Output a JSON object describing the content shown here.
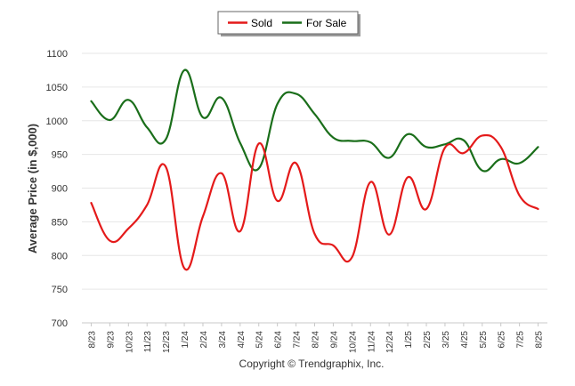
{
  "chart_data": {
    "type": "line",
    "title": "",
    "xlabel": "",
    "ylabel": "Average Price (in $,000)",
    "ylim": [
      700,
      1100
    ],
    "yticks": [
      700,
      750,
      800,
      850,
      900,
      950,
      1000,
      1050,
      1100
    ],
    "grid": true,
    "legend_position": "top-center",
    "categories": [
      "8/23",
      "9/23",
      "10/23",
      "11/23",
      "12/23",
      "1/24",
      "2/24",
      "3/24",
      "4/24",
      "5/24",
      "6/24",
      "7/24",
      "8/24",
      "9/24",
      "10/24",
      "11/24",
      "12/24",
      "1/25",
      "2/25",
      "3/25",
      "4/25",
      "5/25",
      "6/25",
      "7/25",
      "8/25"
    ],
    "series": [
      {
        "name": "Sold",
        "color": "#e41a1a",
        "values": [
          878,
          822,
          840,
          875,
          932,
          781,
          858,
          922,
          836,
          966,
          881,
          937,
          832,
          815,
          797,
          909,
          831,
          916,
          869,
          960,
          952,
          978,
          961,
          889,
          869
        ]
      },
      {
        "name": "For Sale",
        "color": "#1a6e1a",
        "values": [
          1029,
          1001,
          1031,
          990,
          972,
          1075,
          1005,
          1034,
          967,
          929,
          1025,
          1040,
          1010,
          975,
          970,
          968,
          945,
          980,
          961,
          965,
          971,
          926,
          943,
          937,
          961
        ]
      }
    ]
  },
  "footer": {
    "copyright": "Copyright © Trendgraphix, Inc."
  }
}
